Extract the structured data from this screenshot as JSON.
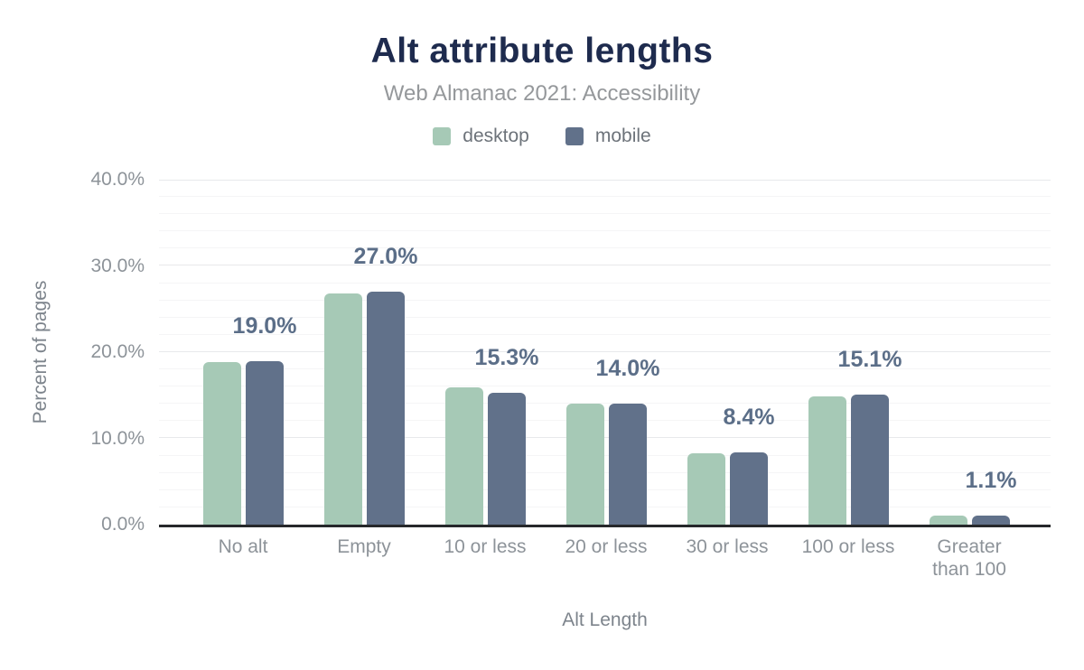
{
  "chart_data": {
    "type": "bar",
    "title": "Alt attribute lengths",
    "subtitle": "Web Almanac 2021: Accessibility",
    "xlabel": "Alt Length",
    "ylabel": "Percent of pages",
    "categories": [
      "No alt",
      "Empty",
      "10 or less",
      "20 or less",
      "30 or less",
      "100 or less",
      "Greater than 100"
    ],
    "series": [
      {
        "name": "desktop",
        "color": "#a6c9b6",
        "values": [
          18.9,
          26.8,
          15.9,
          14.0,
          8.3,
          14.9,
          1.1
        ]
      },
      {
        "name": "mobile",
        "color": "#61718a",
        "values": [
          19.0,
          27.0,
          15.3,
          14.0,
          8.4,
          15.1,
          1.1
        ]
      }
    ],
    "bar_labels": [
      "19.0%",
      "27.0%",
      "15.3%",
      "14.0%",
      "8.4%",
      "15.1%",
      "1.1%"
    ],
    "ylim": [
      0,
      40
    ],
    "ytick_labels": [
      "0.0%",
      "10.0%",
      "20.0%",
      "30.0%",
      "40.0%"
    ],
    "ytick_values": [
      0,
      10,
      20,
      30,
      40
    ],
    "grid": {
      "minor_step": 2,
      "major_step": 10,
      "minor_color": "#f5f5f6",
      "major_color": "#e8e9eb"
    },
    "legend_position": "top",
    "colors": {
      "title": "#1e2b4e",
      "subtitle": "#95989b",
      "axis_text": "#8d9399",
      "axis_title_text": "#7d848c",
      "bar_label": "#5b6e88",
      "axis_line": "#26282b",
      "background": "#ffffff"
    }
  }
}
